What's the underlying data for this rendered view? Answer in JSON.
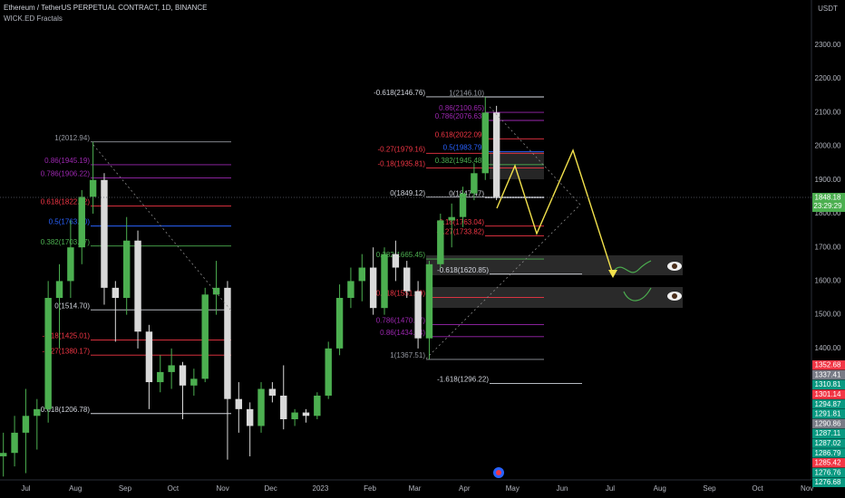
{
  "chart_data": {
    "type": "candlestick",
    "title": "Ethereum / TetherUS PERPETUAL CONTRACT, 1D, BINANCE",
    "subtitle": "WICK.ED Fractals",
    "axis_unit": "USDT",
    "up_color": "#4caf50",
    "down_color": "#d9d9d9",
    "categories": [
      null,
      null,
      null,
      null,
      null,
      null,
      null,
      null,
      null,
      null,
      null,
      null,
      null,
      null,
      null,
      null,
      null,
      null,
      null,
      null,
      null,
      null,
      null,
      null,
      null,
      null,
      null,
      null,
      null,
      null,
      null,
      null,
      null,
      null,
      null,
      null,
      null,
      null,
      null,
      null,
      null,
      null,
      null,
      null,
      null
    ],
    "open": [
      1080,
      1090,
      1150,
      1200,
      1220,
      1550,
      1600,
      1700,
      1850,
      1900,
      1580,
      1550,
      1720,
      1450,
      1300,
      1330,
      1350,
      1290,
      1310,
      1560,
      1580,
      1250,
      1220,
      1170,
      1280,
      1260,
      1190,
      1210,
      1200,
      1260,
      1400,
      1550,
      1600,
      1640,
      1520,
      1680,
      1640,
      1570,
      1430,
      1650,
      1780,
      1790,
      1860,
      1920,
      2100
    ],
    "high": [
      1150,
      1200,
      1280,
      1250,
      1600,
      1650,
      1780,
      1870,
      2013,
      1920,
      1600,
      1790,
      1750,
      1470,
      1380,
      1400,
      1360,
      1340,
      1580,
      1660,
      1600,
      1300,
      1240,
      1300,
      1300,
      1350,
      1220,
      1220,
      1270,
      1420,
      1590,
      1640,
      1680,
      1700,
      1700,
      1720,
      1660,
      1600,
      1660,
      1800,
      1830,
      1880,
      1950,
      2146,
      2120
    ],
    "low": [
      1020,
      1050,
      1030,
      1100,
      1180,
      1400,
      1550,
      1650,
      1800,
      1530,
      1420,
      1500,
      1400,
      1220,
      1270,
      1280,
      1190,
      1260,
      1300,
      1500,
      1070,
      1150,
      1080,
      1150,
      1240,
      1160,
      1170,
      1180,
      1190,
      1250,
      1380,
      1520,
      1540,
      1500,
      1500,
      1600,
      1550,
      1400,
      1368,
      1640,
      1700,
      1760,
      1840,
      1900,
      1840
    ],
    "close": [
      1090,
      1150,
      1200,
      1220,
      1550,
      1600,
      1700,
      1850,
      1900,
      1580,
      1550,
      1720,
      1450,
      1300,
      1330,
      1350,
      1290,
      1310,
      1560,
      1580,
      1250,
      1220,
      1170,
      1280,
      1260,
      1190,
      1210,
      1200,
      1260,
      1400,
      1550,
      1600,
      1640,
      1520,
      1680,
      1640,
      1570,
      1430,
      1650,
      1780,
      1790,
      1860,
      1920,
      2100,
      1848
    ],
    "xlim": [
      -0.3,
      72.1
    ],
    "xticks": [
      {
        "value": 2,
        "label": "Jul"
      },
      {
        "value": 6.43,
        "label": "Aug"
      },
      {
        "value": 10.86,
        "label": "Sep"
      },
      {
        "value": 15.14,
        "label": "Oct"
      },
      {
        "value": 19.57,
        "label": "Nov"
      },
      {
        "value": 23.86,
        "label": "Dec"
      },
      {
        "value": 28.29,
        "label": "2023"
      },
      {
        "value": 32.71,
        "label": "Feb"
      },
      {
        "value": 36.71,
        "label": "Mar"
      },
      {
        "value": 41.14,
        "label": "Apr"
      },
      {
        "value": 45.43,
        "label": "May"
      },
      {
        "value": 49.86,
        "label": "Jun"
      },
      {
        "value": 54.14,
        "label": "Jul"
      },
      {
        "value": 58.57,
        "label": "Aug"
      },
      {
        "value": 63,
        "label": "Sep"
      },
      {
        "value": 67.29,
        "label": "Oct"
      },
      {
        "value": 71.71,
        "label": "Nov"
      }
    ],
    "ylim": [
      1010,
      2434
    ],
    "yticks": [
      {
        "value": 1400,
        "label": "1400.00"
      },
      {
        "value": 1500,
        "label": "1500.00"
      },
      {
        "value": 1600,
        "label": "1600.00"
      },
      {
        "value": 1700,
        "label": "1700.00"
      },
      {
        "value": 1800,
        "label": "1800.00"
      },
      {
        "value": 1900,
        "label": "1900.00"
      },
      {
        "value": 2000,
        "label": "2000.00"
      },
      {
        "value": 2100,
        "label": "2100.00"
      },
      {
        "value": 2200,
        "label": "2200.00"
      },
      {
        "value": 2300,
        "label": "2300.00"
      }
    ],
    "last_price": 1848.18,
    "countdown": "23:29:29",
    "last_price_color": "#4caf50",
    "fib_sets": [
      {
        "levels": [
          {
            "label": "1(2012.94)",
            "value": 2012.94,
            "color": "#9598a1"
          },
          {
            "label": "0.86(1945.19)",
            "value": 1945.19,
            "color": "#9c27b0"
          },
          {
            "label": "0.786(1906.22)",
            "value": 1906.22,
            "color": "#9c27b0"
          },
          {
            "label": "0.618(1822.62)",
            "value": 1822.62,
            "color": "#f23645"
          },
          {
            "label": "0.5(1763.30)",
            "value": 1763.3,
            "color": "#2962ff"
          },
          {
            "label": "0.382(1703.97)",
            "value": 1703.97,
            "color": "#4caf50"
          },
          {
            "label": "0(1514.70)",
            "value": 1514.7,
            "color": "#d1d4dc"
          },
          {
            "label": "-0.18(1425.01)",
            "value": 1425.01,
            "color": "#f23645"
          },
          {
            "label": "-0.27(1380.17)",
            "value": 1380.17,
            "color": "#f23645"
          },
          {
            "label": "-0.618(1206.78)",
            "value": 1206.78,
            "color": "#d1d4dc"
          }
        ]
      },
      {
        "levels": [
          {
            "label": "1(2146.10)",
            "value": 2146.1,
            "color": "#9598a1"
          },
          {
            "label": "0.86(2100.65)",
            "value": 2100.65,
            "color": "#9c27b0"
          },
          {
            "label": "0.786(2076.63)",
            "value": 2076.63,
            "color": "#9c27b0"
          },
          {
            "label": "0.618(2022.09)",
            "value": 2022.09,
            "color": "#f23645"
          },
          {
            "label": "0.5(1983.79)",
            "value": 1983.79,
            "color": "#2962ff"
          },
          {
            "label": "0.382(1945.48)",
            "value": 1945.48,
            "color": "#4caf50"
          },
          {
            "label": "0(1847.47)",
            "value": 1847.47,
            "color": "#d1d4dc"
          },
          {
            "label": "-0.18(1763.04)",
            "value": 1763.04,
            "color": "#f23645"
          },
          {
            "label": "-0.27(1733.82)",
            "value": 1733.82,
            "color": "#f23645"
          }
        ]
      },
      {
        "levels": [
          {
            "label": "-0.618(2146.76)",
            "value": 2146.76,
            "color": "#d1d4dc"
          },
          {
            "label": "-0.27(1979.16)",
            "value": 1979.16,
            "color": "#f23645"
          },
          {
            "label": "-0.18(1935.81)",
            "value": 1935.81,
            "color": "#f23645"
          },
          {
            "label": "0(1849.12)",
            "value": 1849.12,
            "color": "#d1d4dc"
          },
          {
            "label": "0.382(1665.45)",
            "value": 1665.45,
            "color": "#4caf50"
          },
          {
            "label": "0.618(1551.49)",
            "value": 1551.49,
            "color": "#f23645"
          },
          {
            "label": "0.786(1470.97)",
            "value": 1470.97,
            "color": "#9c27b0"
          },
          {
            "label": "0.86(1434.94)",
            "value": 1434.94,
            "color": "#9c27b0"
          },
          {
            "label": "1(1367.51)",
            "value": 1367.51,
            "color": "#9598a1"
          }
        ]
      },
      {
        "levels": [
          {
            "label": "-0.618(1620.85)",
            "value": 1620.85,
            "color": "#d1d4dc"
          },
          {
            "label": "-1.618(1296.22)",
            "value": 1296.22,
            "color": "#d1d4dc"
          }
        ]
      }
    ],
    "price_tags": [
      {
        "label": "1352.68",
        "color": "#f23645"
      },
      {
        "label": "1337.41",
        "color": "#787b86"
      },
      {
        "label": "1310.81",
        "color": "#089981"
      },
      {
        "label": "1301.14",
        "color": "#f23645"
      },
      {
        "label": "1294.87",
        "color": "#089981"
      },
      {
        "label": "1291.81",
        "color": "#089981"
      },
      {
        "label": "1290.86",
        "color": "#787b86"
      },
      {
        "label": "1287.11",
        "color": "#089981"
      },
      {
        "label": "1287.02",
        "color": "#089981"
      },
      {
        "label": "1286.79",
        "color": "#089981"
      },
      {
        "label": "1285.42",
        "color": "#f23645"
      },
      {
        "label": "1276.76",
        "color": "#089981"
      },
      {
        "label": "1276.68",
        "color": "#089981"
      }
    ]
  }
}
